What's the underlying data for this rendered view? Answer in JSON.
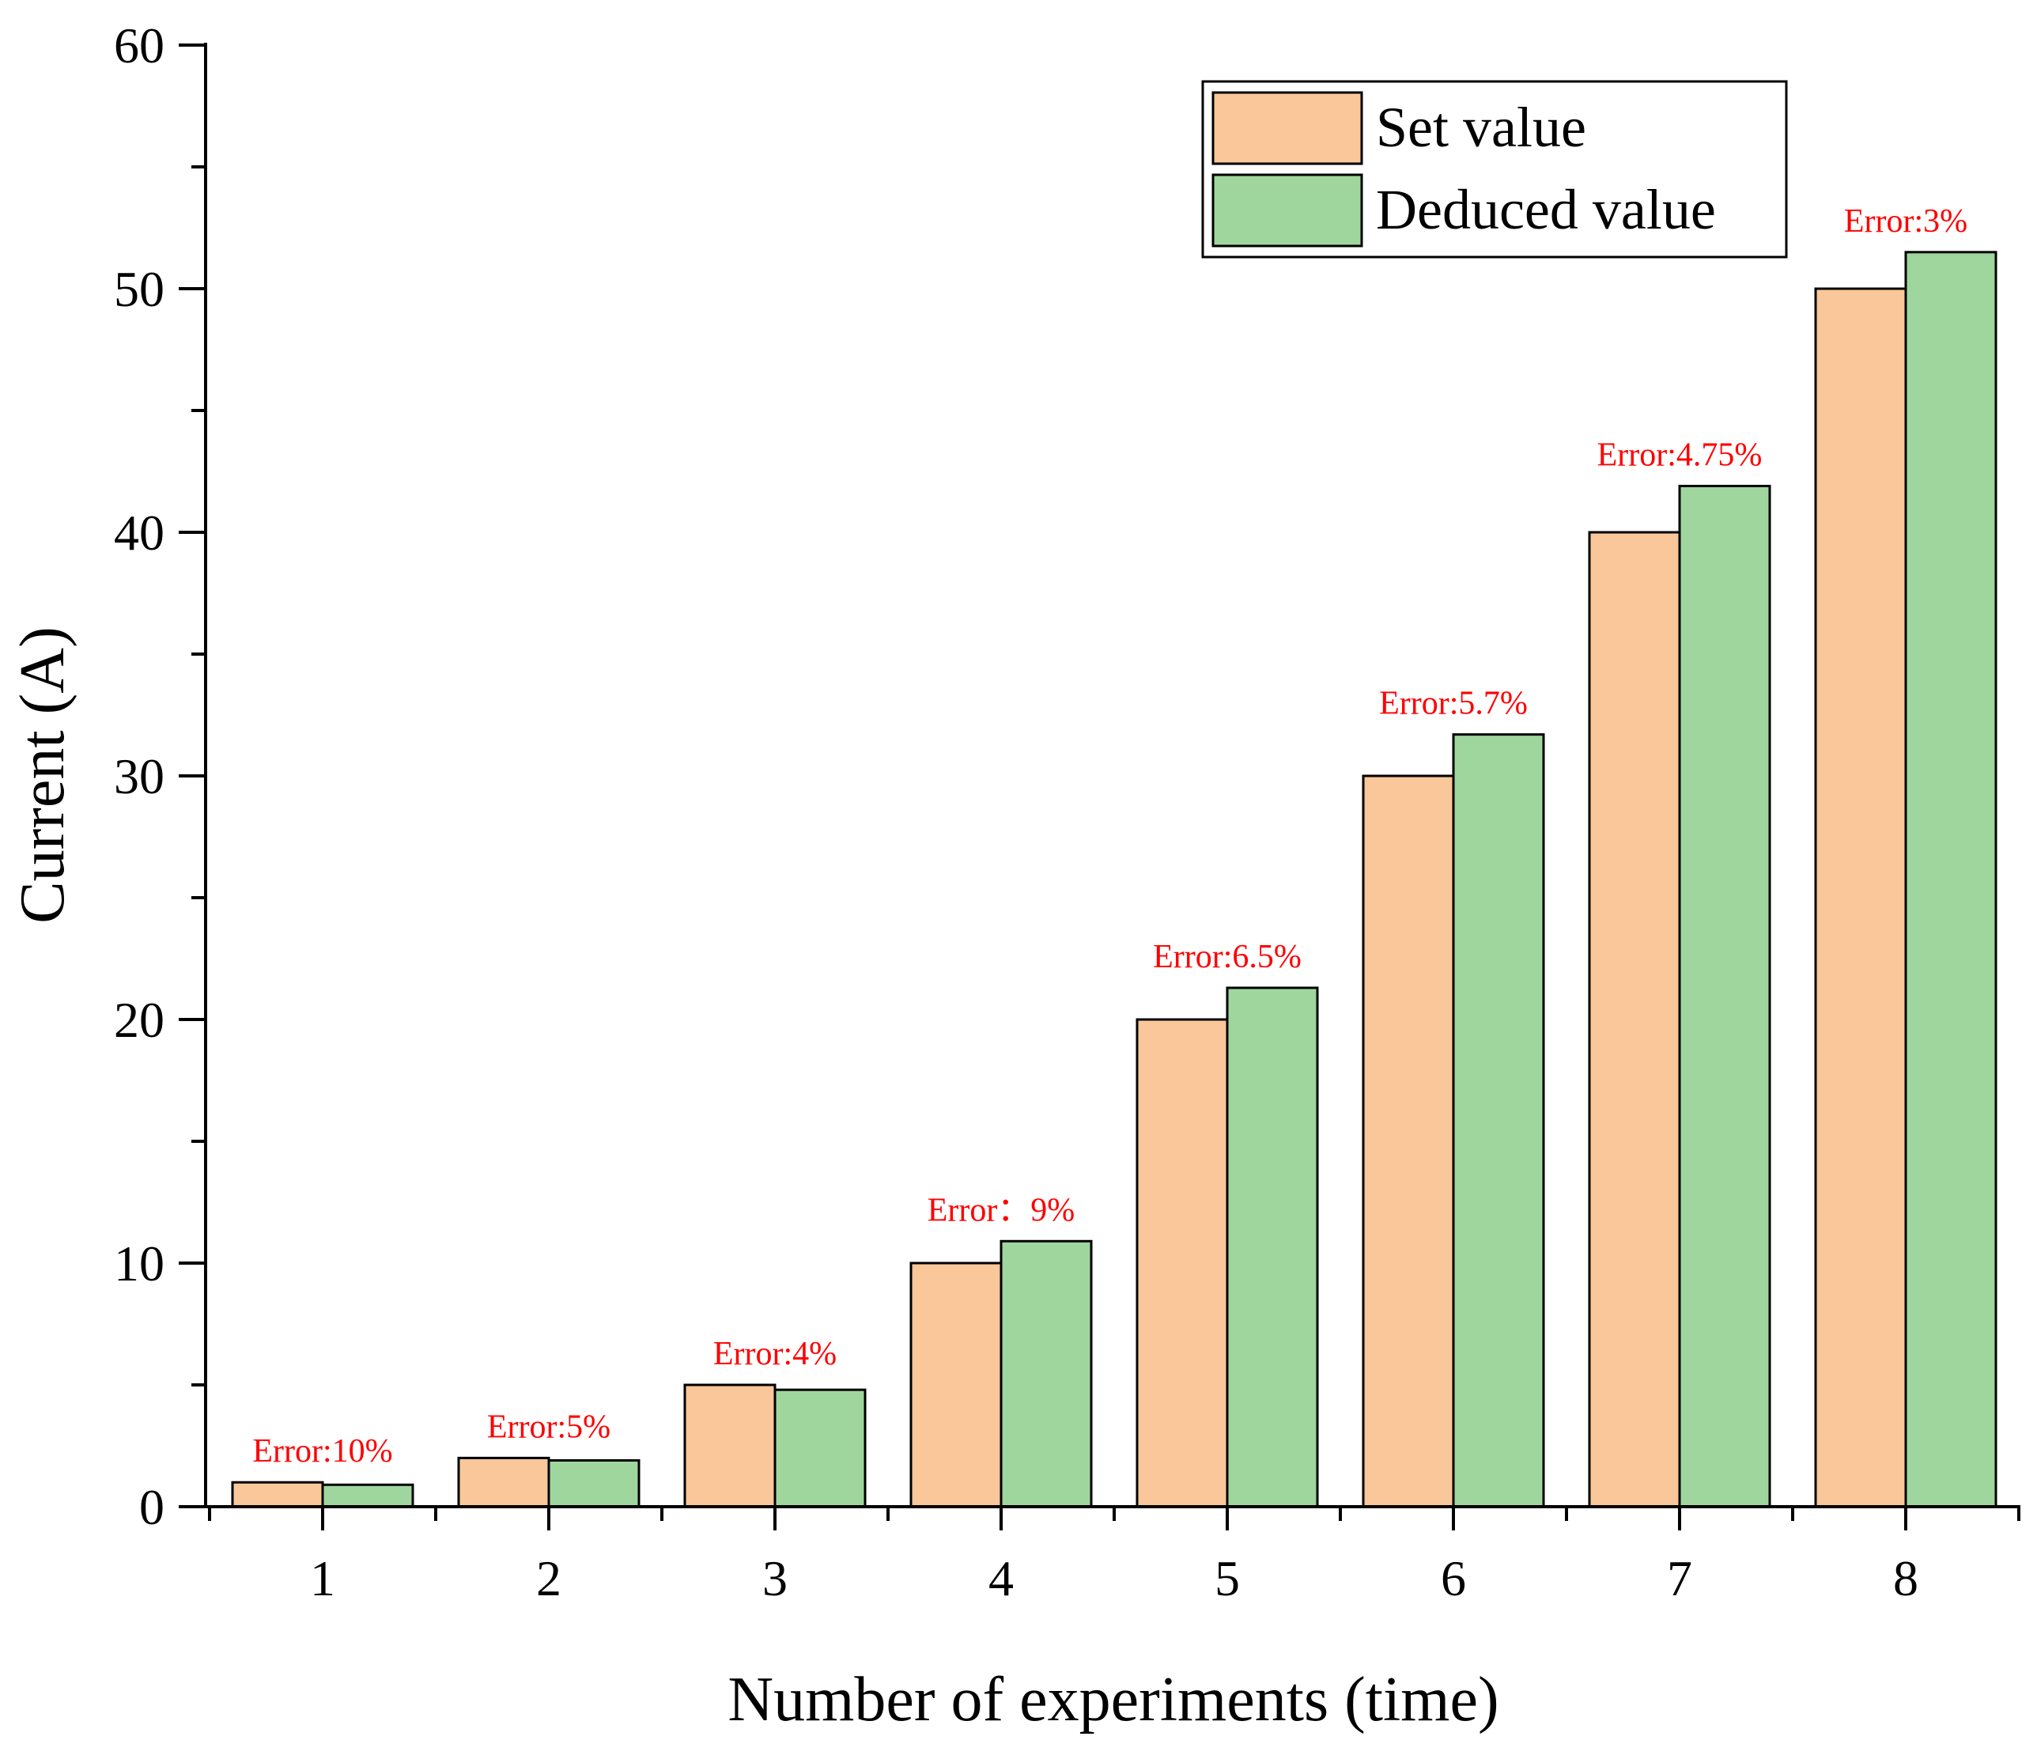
{
  "chart_data": {
    "type": "bar",
    "title": "",
    "xlabel": "Number of experiments (time)",
    "ylabel": "Current (A)",
    "ylim": [
      0,
      60
    ],
    "yticks": [
      0,
      10,
      20,
      30,
      40,
      50,
      60
    ],
    "categories": [
      "1",
      "2",
      "3",
      "4",
      "5",
      "6",
      "7",
      "8"
    ],
    "series": [
      {
        "name": "Set value",
        "color": "#F9C799",
        "values": [
          1,
          2,
          5,
          10,
          20,
          30,
          40,
          50
        ]
      },
      {
        "name": "Deduced value",
        "color": "#9FD69E",
        "values": [
          0.9,
          1.9,
          4.8,
          10.9,
          21.3,
          31.7,
          41.9,
          51.5
        ]
      }
    ],
    "annotations": [
      "Error:10%",
      "Error:5%",
      "Error:4%",
      "Error：9%",
      "Error:6.5%",
      "Error:5.7%",
      "Error:4.75%",
      "Error:3%"
    ],
    "annotation_color": "#FF0000",
    "legend_position": "top-right",
    "grid": false
  }
}
